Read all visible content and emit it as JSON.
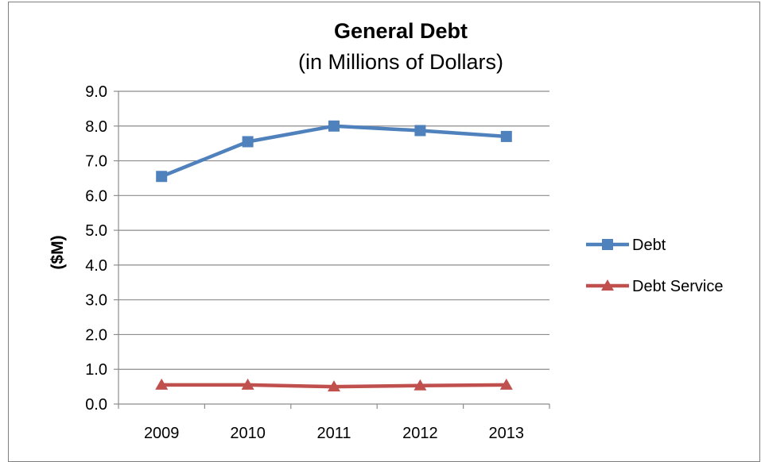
{
  "chart_data": {
    "type": "line",
    "title": "General Debt",
    "subtitle": "(in Millions of Dollars)",
    "xlabel": "",
    "ylabel": "($M)",
    "categories": [
      "2009",
      "2010",
      "2011",
      "2012",
      "2013"
    ],
    "ylim": [
      0,
      9
    ],
    "yticks": [
      "0.0",
      "1.0",
      "2.0",
      "3.0",
      "4.0",
      "5.0",
      "6.0",
      "7.0",
      "8.0",
      "9.0"
    ],
    "grid": true,
    "legend_position": "right",
    "series": [
      {
        "name": "Debt",
        "values": [
          6.55,
          7.55,
          8.0,
          7.87,
          7.7
        ],
        "color": "#4f81bd",
        "marker": "square"
      },
      {
        "name": "Debt Service",
        "values": [
          0.55,
          0.55,
          0.5,
          0.53,
          0.55
        ],
        "color": "#c0504d",
        "marker": "triangle"
      }
    ]
  }
}
